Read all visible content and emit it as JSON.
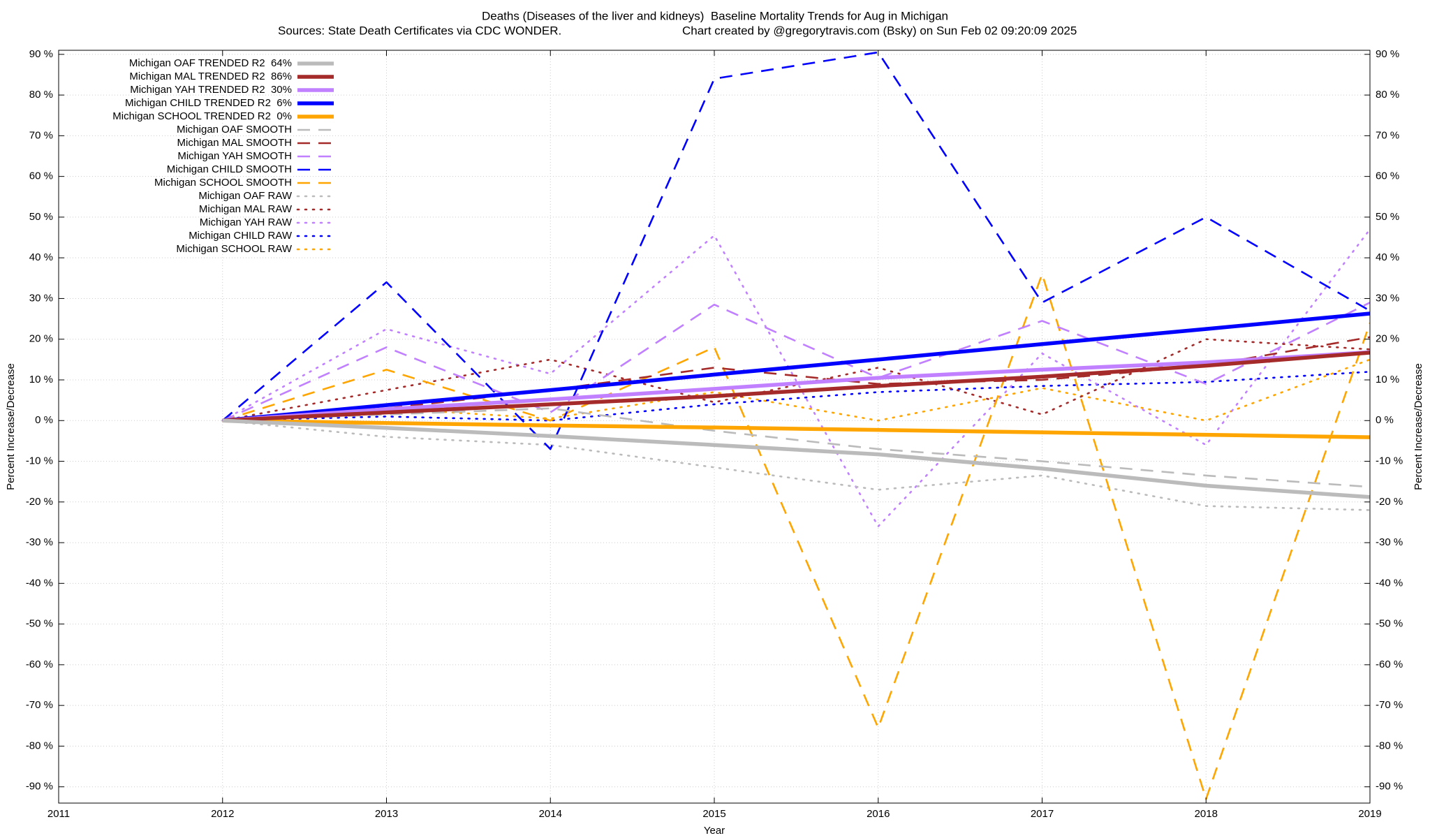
{
  "chart_data": {
    "type": "line",
    "title": "Deaths (Diseases of the liver and kidneys)  Baseline Mortality Trends for Aug in Michigan",
    "source": "Sources: State Death Certificates via CDC WONDER.",
    "credit": "Chart created by @gregorytravis.com (Bsky) on Sun Feb 02 09:20:09 2025",
    "xlabel": "Year",
    "ylabel": "Percent Increase/Decrease",
    "y2label": "Percent Increase/Decrease",
    "grid": true,
    "legend": "top-left",
    "x": [
      2012,
      2013,
      2014,
      2015,
      2016,
      2017,
      2018,
      2019
    ],
    "xlim": [
      2011,
      2019
    ],
    "xticks": [
      2011,
      2012,
      2013,
      2014,
      2015,
      2016,
      2017,
      2018,
      2019
    ],
    "ylim": [
      -94,
      91
    ],
    "yticks": [
      {
        "value": -90,
        "label": "-90 %"
      },
      {
        "value": -80,
        "label": "-80 %"
      },
      {
        "value": -70,
        "label": "-70 %"
      },
      {
        "value": -60,
        "label": "-60 %"
      },
      {
        "value": -50,
        "label": "-50 %"
      },
      {
        "value": -40,
        "label": "-40 %"
      },
      {
        "value": -30,
        "label": "-30 %"
      },
      {
        "value": -20,
        "label": "-20 %"
      },
      {
        "value": -10,
        "label": "-10 %"
      },
      {
        "value": 0,
        "label": "0 %"
      },
      {
        "value": 10,
        "label": "10 %"
      },
      {
        "value": 20,
        "label": "20 %"
      },
      {
        "value": 30,
        "label": "30 %"
      },
      {
        "value": 40,
        "label": "40 %"
      },
      {
        "value": 50,
        "label": "50 %"
      },
      {
        "value": 60,
        "label": "60 %"
      },
      {
        "value": 70,
        "label": "70 %"
      },
      {
        "value": 80,
        "label": "80 %"
      },
      {
        "value": 90,
        "label": "90 %"
      }
    ],
    "series": [
      {
        "name": "Michigan OAF TRENDED R2  64%",
        "color": "#bbbbbb",
        "style": "solid",
        "values": [
          0,
          -1.8,
          -3.8,
          -6,
          -8.3,
          -11.8,
          -16,
          -18.8
        ]
      },
      {
        "name": "Michigan MAL TRENDED R2  86%",
        "color": "#a52a2a",
        "style": "solid",
        "values": [
          0,
          2,
          4,
          6,
          8.5,
          10.8,
          13.5,
          16.7
        ]
      },
      {
        "name": "Michigan YAH TRENDED R2  30%",
        "color": "#c080ff",
        "style": "solid",
        "values": [
          0,
          2.8,
          5.2,
          7.8,
          10.5,
          12.5,
          14.3,
          16.8
        ]
      },
      {
        "name": "Michigan CHILD TRENDED R2  6%",
        "color": "#0000ff",
        "style": "solid",
        "values": [
          0,
          3.8,
          7.5,
          11.3,
          15,
          18.8,
          22.5,
          26.3
        ]
      },
      {
        "name": "Michigan SCHOOL TRENDED R2  0%",
        "color": "#ffa500",
        "style": "solid",
        "values": [
          0,
          -0.6,
          -1.2,
          -1.7,
          -2.3,
          -2.9,
          -3.5,
          -4.1
        ]
      },
      {
        "name": "Michigan OAF SMOOTH",
        "color": "#bbbbbb",
        "style": "dashed",
        "values": [
          0,
          1.5,
          3,
          -2.5,
          -7,
          -10,
          -13.5,
          -16.3
        ]
      },
      {
        "name": "Michigan MAL SMOOTH",
        "color": "#a52a2a",
        "style": "dashed",
        "values": [
          0,
          3,
          7.5,
          13,
          9,
          10,
          13.5,
          20.5
        ]
      },
      {
        "name": "Michigan YAH SMOOTH",
        "color": "#c080ff",
        "style": "dashed",
        "values": [
          0,
          18,
          2,
          28.5,
          10.5,
          24.5,
          9,
          29
        ]
      },
      {
        "name": "Michigan CHILD SMOOTH",
        "color": "#0000ff",
        "style": "dashed",
        "values": [
          0,
          34,
          -7,
          84,
          90.5,
          29,
          50,
          27
        ]
      },
      {
        "name": "Michigan SCHOOL SMOOTH",
        "color": "#ffa500",
        "style": "dashed",
        "values": [
          0,
          12.5,
          0,
          18,
          -75.5,
          36,
          -93,
          24
        ]
      },
      {
        "name": "Michigan OAF RAW",
        "color": "#bbbbbb",
        "style": "dotted",
        "values": [
          0,
          -4,
          -6,
          -11.5,
          -17,
          -13.5,
          -21,
          -22
        ]
      },
      {
        "name": "Michigan MAL RAW",
        "color": "#a52a2a",
        "style": "dotted",
        "values": [
          0,
          7.5,
          15,
          4.5,
          13,
          1.5,
          20,
          17.5
        ]
      },
      {
        "name": "Michigan YAH RAW",
        "color": "#c080ff",
        "style": "dotted",
        "values": [
          0,
          22.5,
          11.5,
          45.5,
          -26,
          16.5,
          -6,
          47
        ]
      },
      {
        "name": "Michigan CHILD RAW",
        "color": "#0000ff",
        "style": "dotted",
        "values": [
          0,
          1,
          0,
          4,
          7,
          8.5,
          9.5,
          12
        ]
      },
      {
        "name": "Michigan SCHOOL RAW",
        "color": "#ffa500",
        "style": "dotted",
        "values": [
          0,
          3,
          0.5,
          7,
          0,
          8,
          0,
          15
        ]
      }
    ]
  }
}
